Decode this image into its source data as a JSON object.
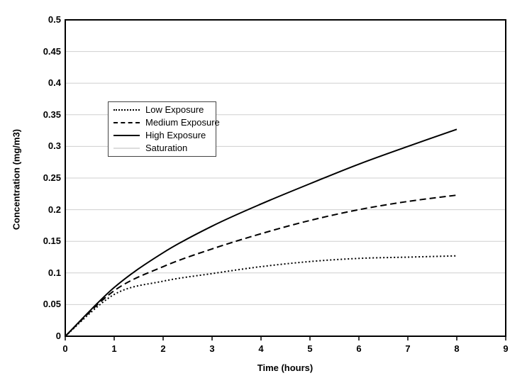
{
  "chart_data": {
    "type": "line",
    "title": "",
    "xlabel": "Time (hours)",
    "ylabel": "Concentration (mg/m3)",
    "xlim": [
      0,
      9
    ],
    "ylim": [
      0,
      0.5
    ],
    "grid": "horizontal",
    "legend_position": "inside-upper-left",
    "x_tick_values": [
      0,
      1,
      2,
      3,
      4,
      5,
      6,
      7,
      8,
      9
    ],
    "x_tick_labels": [
      "0",
      "1",
      "2",
      "3",
      "4",
      "5",
      "6",
      "7",
      "8",
      "9"
    ],
    "y_tick_values": [
      0,
      0.05,
      0.1,
      0.15,
      0.2,
      0.25,
      0.3,
      0.35,
      0.4,
      0.45,
      0.5
    ],
    "y_tick_labels": [
      "0",
      "0.05",
      "0.1",
      "0.15",
      "0.2",
      "0.25",
      "0.3",
      "0.35",
      "0.4",
      "0.45",
      "0.5"
    ],
    "x": [
      0,
      1,
      2,
      3,
      4,
      5,
      6,
      7,
      8
    ],
    "series": [
      {
        "name": "Low Exposure",
        "style": "dotted",
        "color": "#000000",
        "values": [
          0,
          0.066,
          0.087,
          0.099,
          0.11,
          0.118,
          0.123,
          0.125,
          0.127
        ]
      },
      {
        "name": "Medium Exposure",
        "style": "dashed",
        "color": "#000000",
        "values": [
          0,
          0.072,
          0.11,
          0.138,
          0.162,
          0.183,
          0.2,
          0.213,
          0.223
        ]
      },
      {
        "name": "High Exposure",
        "style": "solid",
        "color": "#000000",
        "values": [
          0,
          0.077,
          0.132,
          0.174,
          0.209,
          0.241,
          0.272,
          0.3,
          0.327
        ]
      },
      {
        "name": "Saturation",
        "style": "faint",
        "color": "#dcdcdc",
        "values": [
          0.5,
          0.5,
          0.5,
          0.5,
          0.5,
          0.5,
          0.5,
          0.5,
          0.5
        ]
      }
    ]
  },
  "colors": {
    "background": "#ffffff",
    "axis": "#000000",
    "grid": "#cfcfcf",
    "legend_border": "#444444"
  }
}
